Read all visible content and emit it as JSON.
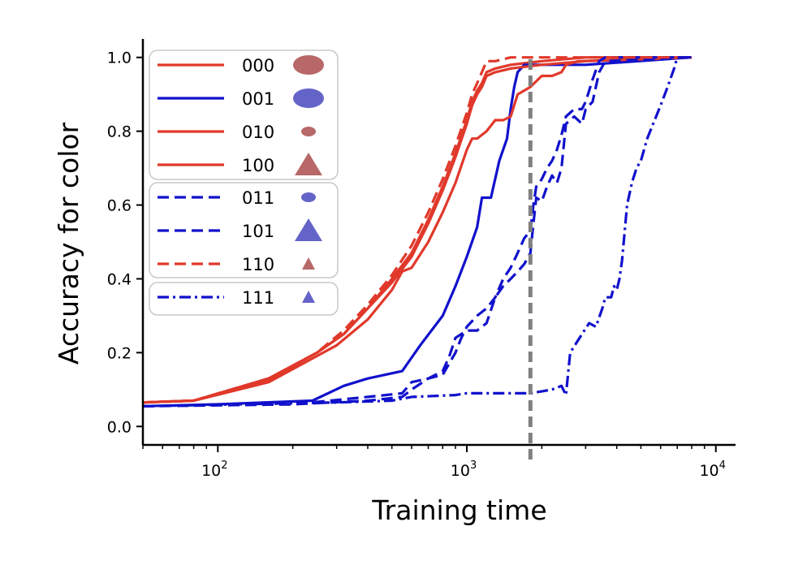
{
  "chart_data": {
    "type": "line",
    "xlabel": "Training time",
    "ylabel": "Accuracy for color",
    "xscale": "log",
    "xlim": [
      50,
      12000
    ],
    "ylim": [
      -0.05,
      1.05
    ],
    "x_ticks": [
      {
        "value": 100,
        "label": "10",
        "sup": "2"
      },
      {
        "value": 1000,
        "label": "10",
        "sup": "3"
      },
      {
        "value": 10000,
        "label": "10",
        "sup": "4"
      }
    ],
    "y_ticks": [
      {
        "value": 0.0,
        "label": "0.0"
      },
      {
        "value": 0.2,
        "label": "0.2"
      },
      {
        "value": 0.4,
        "label": "0.4"
      },
      {
        "value": 0.6,
        "label": "0.6"
      },
      {
        "value": 0.8,
        "label": "0.8"
      },
      {
        "value": 1.0,
        "label": "1.0"
      }
    ],
    "vline": {
      "x": 1800,
      "color": "#808080",
      "style": "dashed"
    },
    "legend_position": "top-left",
    "legend_groups": [
      [
        "000",
        "001",
        "010",
        "100"
      ],
      [
        "011",
        "101",
        "110"
      ],
      [
        "111"
      ]
    ],
    "colors": {
      "red": "#e0392b",
      "blue": "#1111cc",
      "red_marker": "#b86868",
      "blue_marker": "#6464c8"
    },
    "series": [
      {
        "name": "000",
        "color": "#e0392b",
        "style": "solid",
        "marker": "ellipse-large",
        "x": [
          50,
          80,
          160,
          250,
          320,
          400,
          500,
          600,
          700,
          800,
          900,
          1000,
          1050,
          1100,
          1150,
          1200,
          1300,
          1500,
          2000,
          3000,
          8000
        ],
        "y": [
          0.065,
          0.07,
          0.13,
          0.2,
          0.25,
          0.32,
          0.4,
          0.47,
          0.56,
          0.65,
          0.74,
          0.83,
          0.88,
          0.91,
          0.93,
          0.96,
          0.97,
          0.98,
          0.99,
          1.0,
          1.0
        ]
      },
      {
        "name": "001",
        "color": "#1111cc",
        "style": "solid",
        "marker": "ellipse-large",
        "x": [
          50,
          100,
          240,
          320,
          400,
          550,
          650,
          800,
          900,
          1000,
          1100,
          1150,
          1250,
          1350,
          1450,
          1500,
          1550,
          1600,
          1700,
          2000,
          2500,
          3000,
          8000
        ],
        "y": [
          0.055,
          0.06,
          0.07,
          0.11,
          0.13,
          0.15,
          0.22,
          0.3,
          0.38,
          0.46,
          0.54,
          0.62,
          0.62,
          0.72,
          0.78,
          0.86,
          0.92,
          0.96,
          0.98,
          0.98,
          0.98,
          0.98,
          1.0
        ]
      },
      {
        "name": "010",
        "color": "#e0392b",
        "style": "solid",
        "marker": "ellipse-small",
        "x": [
          50,
          80,
          160,
          300,
          400,
          500,
          550,
          600,
          700,
          800,
          900,
          1000,
          1050,
          1100,
          1200,
          1300,
          1400,
          1500,
          1600,
          1800,
          2000,
          2200,
          2400,
          2500,
          2800,
          8000
        ],
        "y": [
          0.065,
          0.07,
          0.12,
          0.22,
          0.29,
          0.37,
          0.42,
          0.43,
          0.5,
          0.58,
          0.66,
          0.75,
          0.78,
          0.78,
          0.8,
          0.83,
          0.83,
          0.84,
          0.9,
          0.92,
          0.95,
          0.95,
          0.96,
          0.98,
          0.99,
          1.0
        ]
      },
      {
        "name": "100",
        "color": "#e0392b",
        "style": "solid",
        "marker": "triangle-large",
        "x": [
          50,
          80,
          160,
          250,
          320,
          400,
          500,
          600,
          700,
          800,
          900,
          1000,
          1050,
          1100,
          1150,
          1200,
          1300,
          1500,
          2000,
          3000,
          8000
        ],
        "y": [
          0.065,
          0.07,
          0.125,
          0.2,
          0.25,
          0.32,
          0.39,
          0.46,
          0.55,
          0.64,
          0.73,
          0.82,
          0.87,
          0.9,
          0.92,
          0.95,
          0.96,
          0.97,
          0.98,
          0.99,
          1.0
        ]
      },
      {
        "name": "011",
        "color": "#1111cc",
        "style": "dashed",
        "marker": "ellipse-small",
        "x": [
          50,
          200,
          400,
          550,
          600,
          700,
          800,
          900,
          950,
          1000,
          1100,
          1200,
          1300,
          1400,
          1500,
          1600,
          1700,
          1800,
          1850,
          1900,
          2000,
          2100,
          2200,
          2300,
          2400,
          2500,
          2700,
          2900,
          3000,
          3200,
          3400,
          3600,
          8000
        ],
        "y": [
          0.055,
          0.06,
          0.07,
          0.08,
          0.1,
          0.13,
          0.14,
          0.2,
          0.24,
          0.27,
          0.3,
          0.32,
          0.35,
          0.4,
          0.43,
          0.47,
          0.51,
          0.53,
          0.6,
          0.65,
          0.67,
          0.7,
          0.72,
          0.75,
          0.79,
          0.84,
          0.86,
          0.86,
          0.88,
          0.94,
          0.99,
          1.0,
          1.0
        ]
      },
      {
        "name": "101",
        "color": "#1111cc",
        "style": "dashed",
        "marker": "triangle-large",
        "x": [
          50,
          200,
          400,
          550,
          600,
          700,
          800,
          850,
          900,
          1000,
          1100,
          1200,
          1300,
          1400,
          1500,
          1600,
          1700,
          1800,
          1850,
          1900,
          2000,
          2100,
          2200,
          2300,
          2400,
          2500,
          2700,
          2900,
          3000,
          3200,
          3400,
          3600,
          8000
        ],
        "y": [
          0.055,
          0.06,
          0.08,
          0.09,
          0.12,
          0.13,
          0.15,
          0.19,
          0.24,
          0.26,
          0.26,
          0.28,
          0.35,
          0.38,
          0.4,
          0.42,
          0.44,
          0.47,
          0.55,
          0.62,
          0.61,
          0.65,
          0.68,
          0.66,
          0.7,
          0.82,
          0.84,
          0.82,
          0.86,
          0.88,
          0.96,
          0.99,
          1.0
        ]
      },
      {
        "name": "110",
        "color": "#e0392b",
        "style": "dashed",
        "marker": "triangle-small",
        "x": [
          50,
          80,
          160,
          250,
          320,
          400,
          500,
          600,
          700,
          800,
          900,
          1000,
          1050,
          1100,
          1150,
          1200,
          1300,
          1500,
          2000,
          8000
        ],
        "y": [
          0.065,
          0.07,
          0.13,
          0.2,
          0.26,
          0.33,
          0.41,
          0.49,
          0.58,
          0.67,
          0.76,
          0.85,
          0.9,
          0.93,
          0.96,
          0.99,
          0.99,
          1.0,
          1.0,
          1.0
        ]
      },
      {
        "name": "111",
        "color": "#1111cc",
        "style": "dashdot",
        "marker": "triangle-small",
        "x": [
          50,
          300,
          500,
          600,
          900,
          1000,
          1500,
          1800,
          2000,
          2200,
          2400,
          2500,
          2600,
          2900,
          3100,
          3300,
          3500,
          3600,
          3800,
          3900,
          4000,
          4100,
          4200,
          4400,
          4600,
          4800,
          5000,
          5300,
          5600,
          6000,
          6400,
          6800,
          7000,
          8000
        ],
        "y": [
          0.055,
          0.065,
          0.07,
          0.08,
          0.085,
          0.09,
          0.09,
          0.09,
          0.095,
          0.1,
          0.11,
          0.085,
          0.2,
          0.25,
          0.28,
          0.27,
          0.32,
          0.35,
          0.35,
          0.38,
          0.37,
          0.4,
          0.45,
          0.6,
          0.66,
          0.7,
          0.72,
          0.78,
          0.82,
          0.87,
          0.92,
          0.97,
          1.0,
          1.0
        ]
      }
    ]
  }
}
